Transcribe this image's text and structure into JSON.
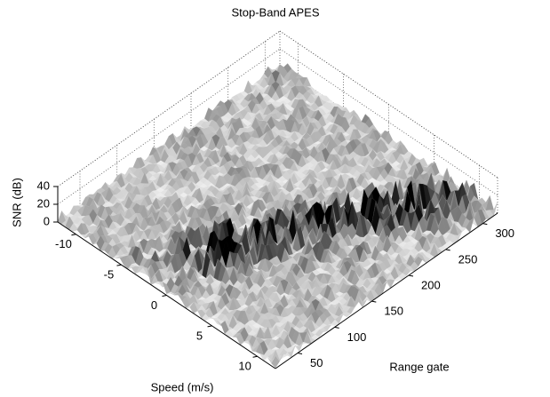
{
  "chart_data": {
    "type": "surface3d",
    "title": "Stop-Band APES",
    "xlabel": "Speed (m/s)",
    "ylabel": "Range gate",
    "zlabel": "SNR (dB)",
    "xlim": [
      -12,
      12
    ],
    "xticks": [
      -10,
      -5,
      0,
      5,
      10
    ],
    "ylim": [
      20,
      320
    ],
    "yticks": [
      50,
      100,
      150,
      200,
      250,
      300
    ],
    "zlim": [
      0,
      40
    ],
    "zticks": [
      0,
      20,
      40
    ],
    "grid": true
  }
}
